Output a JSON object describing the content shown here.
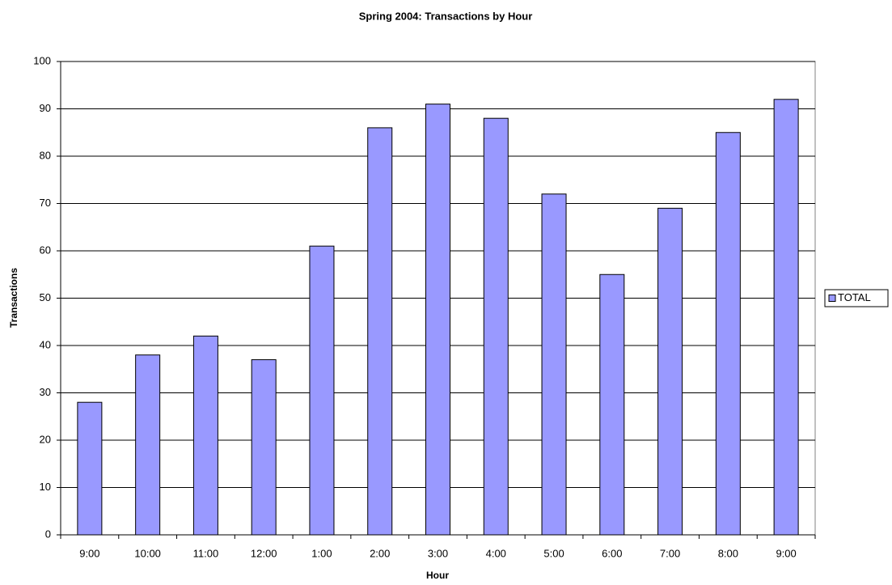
{
  "chart_data": {
    "type": "bar",
    "title": "Spring 2004: Transactions by Hour",
    "x_label": "Hour",
    "y_label": "Transactions",
    "categories": [
      "9:00",
      "10:00",
      "11:00",
      "12:00",
      "1:00",
      "2:00",
      "3:00",
      "4:00",
      "5:00",
      "6:00",
      "7:00",
      "8:00",
      "9:00"
    ],
    "series": [
      {
        "name": "TOTAL",
        "color": "#9999ff",
        "values": [
          28,
          38,
          42,
          37,
          61,
          86,
          91,
          88,
          72,
          55,
          69,
          85,
          92
        ]
      }
    ],
    "ylim": [
      0,
      100
    ],
    "yticks": [
      0,
      10,
      20,
      30,
      40,
      50,
      60,
      70,
      80,
      90,
      100
    ],
    "grid": true,
    "legend": "right"
  }
}
